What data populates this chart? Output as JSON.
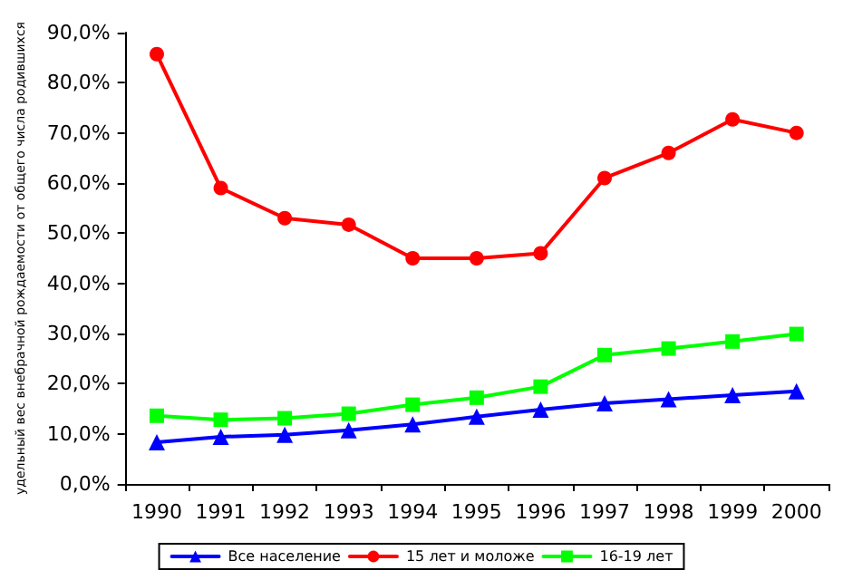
{
  "chart_data": {
    "type": "line",
    "ylabel": "удельный вес внебрачной рождаемости от общего числа родившихся",
    "categories": [
      "1990",
      "1991",
      "1992",
      "1993",
      "1994",
      "1995",
      "1996",
      "1997",
      "1998",
      "1999",
      "2000"
    ],
    "series": [
      {
        "name": "Все население",
        "color": "#0000ff",
        "marker": "triangle",
        "values": [
          8.3,
          9.4,
          9.8,
          10.7,
          11.9,
          13.4,
          14.8,
          16.1,
          16.9,
          17.7,
          18.5
        ]
      },
      {
        "name": "15 лет и моложе",
        "color": "#ff0000",
        "marker": "circle",
        "values": [
          85.7,
          59,
          53,
          51.7,
          45,
          45,
          46,
          61,
          66,
          72.7,
          70
        ]
      },
      {
        "name": "16-19 лет",
        "color": "#00ff00",
        "marker": "square",
        "values": [
          13.6,
          12.8,
          13.1,
          14,
          15.8,
          17.2,
          19.4,
          25.7,
          27,
          28.4,
          29.9
        ]
      }
    ],
    "ylim": [
      0,
      90
    ],
    "yticks": [
      {
        "value": 0,
        "label": "0,0%"
      },
      {
        "value": 10,
        "label": "10,0%"
      },
      {
        "value": 20,
        "label": "20,0%"
      },
      {
        "value": 30,
        "label": "30,0%"
      },
      {
        "value": 40,
        "label": "40,0%"
      },
      {
        "value": 50,
        "label": "50,0%"
      },
      {
        "value": 60,
        "label": "60,0%"
      },
      {
        "value": 70,
        "label": "70,0%"
      },
      {
        "value": 80,
        "label": "80,0%"
      },
      {
        "value": 90,
        "label": "90,0%"
      }
    ],
    "grid": false,
    "legend": "bottom",
    "line_style": "solid"
  }
}
